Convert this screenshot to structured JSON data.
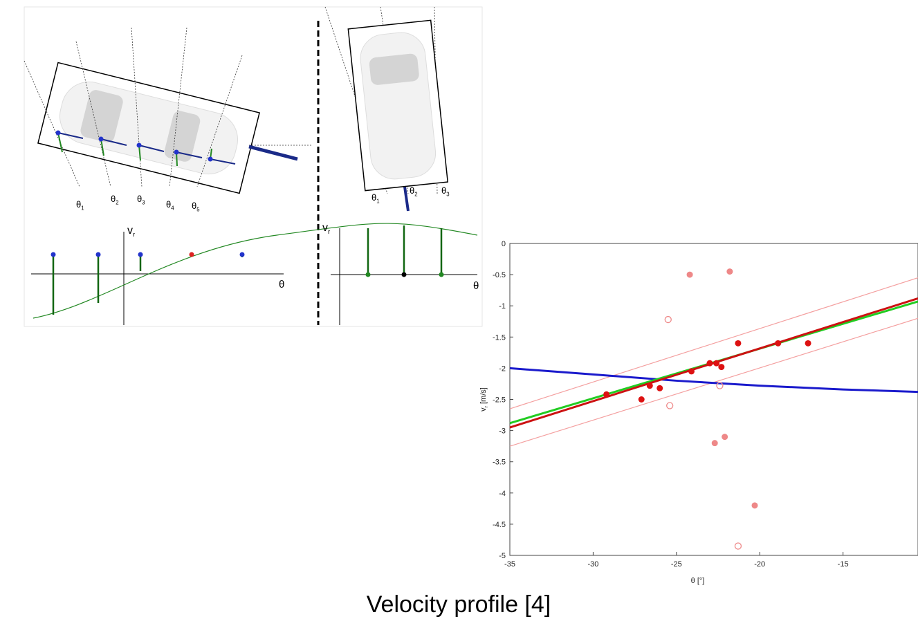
{
  "diagram": {
    "left_angles": [
      {
        "base": "θ",
        "sub": "1"
      },
      {
        "base": "θ",
        "sub": "2"
      },
      {
        "base": "θ",
        "sub": "3"
      },
      {
        "base": "θ",
        "sub": "4"
      },
      {
        "base": "θ",
        "sub": "5"
      }
    ],
    "right_angles": [
      {
        "base": "θ",
        "sub": "1"
      },
      {
        "base": "θ",
        "sub": "2"
      },
      {
        "base": "θ",
        "sub": "3"
      }
    ],
    "left_vr": {
      "base": "v",
      "sub": "r"
    },
    "right_vr": {
      "base": "v",
      "sub": "r"
    },
    "left_theta": "θ",
    "right_theta": "θ"
  },
  "chart_data": {
    "type": "scatter",
    "x_label": "θ [°]",
    "y_label": {
      "base": "v",
      "sub": "r",
      "unit": "[m/s]"
    },
    "xlim": [
      -35,
      -10.5
    ],
    "ylim": [
      -5,
      0
    ],
    "xticks": [
      -35,
      -30,
      -25,
      -20,
      -15
    ],
    "yticks": [
      0,
      -0.5,
      -1,
      -1.5,
      -2,
      -2.5,
      -3,
      -3.5,
      -4,
      -4.5,
      -5
    ],
    "series": [
      {
        "marker": "line",
        "color": "#f4a0a0",
        "x": [
          -35,
          -10.5
        ],
        "values": [
          -2.65,
          -0.55
        ]
      },
      {
        "marker": "line",
        "color": "#f4a0a0",
        "x": [
          -35,
          -10.5
        ],
        "values": [
          -3.25,
          -1.2
        ]
      },
      {
        "marker": "line",
        "color": "#1a1acc",
        "x": [
          -35,
          -30,
          -25,
          -20,
          -15,
          -10.5
        ],
        "values": [
          -2.0,
          -2.1,
          -2.2,
          -2.28,
          -2.34,
          -2.38
        ]
      },
      {
        "marker": "line",
        "color": "#22cc22",
        "x": [
          -35,
          -10.5
        ],
        "values": [
          -2.88,
          -0.93
        ]
      },
      {
        "marker": "line",
        "color": "#cc1111",
        "x": [
          -35,
          -10.5
        ],
        "values": [
          -2.95,
          -0.88
        ]
      },
      {
        "marker": "filled",
        "color": "#dd1111",
        "x": [
          -29.2,
          -27.1,
          -26.6,
          -26,
          -24.1,
          -23,
          -22.6,
          -22.3,
          -21.3,
          -18.9,
          -17.1
        ],
        "values": [
          -2.42,
          -2.5,
          -2.28,
          -2.32,
          -2.05,
          -1.92,
          -1.92,
          -1.98,
          -1.6,
          -1.6,
          -1.6
        ]
      },
      {
        "marker": "filled",
        "color": "#ee8888",
        "x": [
          -24.2,
          -21.8,
          -22.7,
          -22.1,
          -20.3
        ],
        "values": [
          -0.5,
          -0.45,
          -3.2,
          -3.1,
          -4.2
        ]
      },
      {
        "marker": "open",
        "color": "#ee8888",
        "x": [
          -25.5,
          -25.4,
          -22.4,
          -21.3
        ],
        "values": [
          -1.22,
          -2.6,
          -2.28,
          -4.85
        ]
      }
    ]
  },
  "caption": "Velocity profile [4]"
}
